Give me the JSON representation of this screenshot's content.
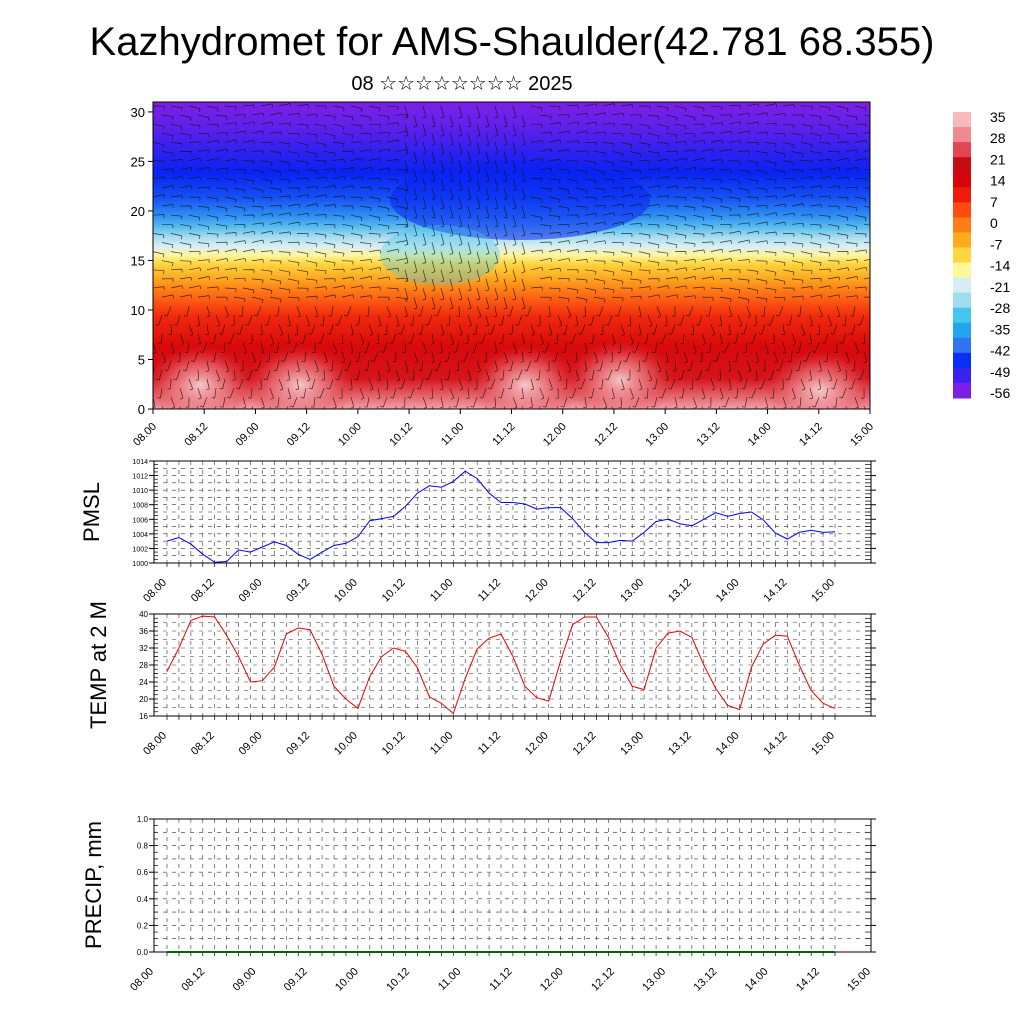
{
  "title": "Kazhydromet for AMS-Shaulder(42.781 68.355)",
  "subtitle": "08 ☆☆☆☆☆☆☆☆ 2025",
  "colors": {
    "pmsl_line": "#0000ee",
    "temp_line": "#ee0000",
    "precip_line": "#006400",
    "palette": [
      "#7b1fe8",
      "#3a22f0",
      "#0a2ef5",
      "#2f74f2",
      "#20a6f0",
      "#46c6ee",
      "#9fdcf0",
      "#d6eef3",
      "#fff899",
      "#ffd640",
      "#ffab1e",
      "#ff7d14",
      "#ff4a10",
      "#f01a0c",
      "#d5060a",
      "#c70b12",
      "#e34650",
      "#f08a92",
      "#f6b9bd"
    ]
  },
  "chart_data": [
    {
      "type": "heatmap",
      "description_name": "cross-section",
      "xlabel": "",
      "ylabel": "",
      "x_ticks": [
        "08.00",
        "08.12",
        "09.00",
        "09.12",
        "10.00",
        "10.12",
        "11.00",
        "11.12",
        "12.00",
        "12.12",
        "13.00",
        "13.12",
        "14.00",
        "14.12",
        "15.00"
      ],
      "y_ticks": [
        0,
        5,
        10,
        15,
        20,
        25,
        30
      ],
      "ylim": [
        0,
        31
      ],
      "colorbar_labels": [
        "35",
        "28",
        "21",
        "14",
        "7",
        "0",
        "-7",
        "-14",
        "-21",
        "-28",
        "-35",
        "-42",
        "-49",
        "-56"
      ]
    },
    {
      "type": "line",
      "ylabel": "PMSL",
      "x_ticks": [
        "08.00",
        "08.12",
        "09.00",
        "09.12",
        "10.00",
        "10.12",
        "11.00",
        "11.12",
        "12.00",
        "12.12",
        "13.00",
        "13.12",
        "14.00",
        "14.12",
        "15.00"
      ],
      "y_ticks": [
        1000,
        1002,
        1004,
        1006,
        1008,
        1010,
        1012,
        1014
      ],
      "ylim": [
        1000,
        1014
      ],
      "x_step_hours": 3,
      "values": [
        1003.0,
        1003.5,
        1002.6,
        1001.2,
        1000.1,
        1000.2,
        1001.8,
        1001.5,
        1002.2,
        1002.9,
        1002.4,
        1001.2,
        1000.5,
        1001.5,
        1002.4,
        1002.7,
        1003.6,
        1005.8,
        1006.1,
        1006.4,
        1007.8,
        1009.6,
        1010.6,
        1010.4,
        1011.2,
        1012.6,
        1011.6,
        1009.6,
        1008.3,
        1008.3,
        1008.1,
        1007.4,
        1007.6,
        1007.6,
        1006.1,
        1004.2,
        1002.8,
        1002.8,
        1003.1,
        1003.0,
        1004.2,
        1005.7,
        1006.0,
        1005.4,
        1005.1,
        1006.0,
        1006.9,
        1006.4,
        1006.8,
        1007.0,
        1005.9,
        1004.1,
        1003.3,
        1004.2,
        1004.5,
        1004.2,
        1004.3
      ]
    },
    {
      "type": "line",
      "ylabel": "TEMP at 2 M",
      "x_ticks": [
        "08.00",
        "08.12",
        "09.00",
        "09.12",
        "10.00",
        "10.12",
        "11.00",
        "11.12",
        "12.00",
        "12.12",
        "13.00",
        "13.12",
        "14.00",
        "14.12",
        "15.00"
      ],
      "y_ticks": [
        16,
        20,
        24,
        28,
        32,
        36,
        40
      ],
      "ylim": [
        16,
        40
      ],
      "x_step_hours": 3,
      "values": [
        26.5,
        32,
        38.5,
        39.5,
        39.3,
        35,
        30,
        24,
        24.3,
        27.5,
        35.3,
        36.7,
        36.3,
        30.5,
        23,
        20,
        17.8,
        25.3,
        30,
        32,
        31.2,
        27.3,
        20.5,
        19,
        16.6,
        24.8,
        31.8,
        34.3,
        35.3,
        30,
        23,
        20.3,
        19.5,
        29,
        37.5,
        39.3,
        39.3,
        34.5,
        28,
        23,
        22.2,
        32,
        35.5,
        36,
        34.5,
        28,
        22.5,
        18.5,
        17.5,
        27.5,
        33,
        35,
        34.8,
        28,
        22,
        19,
        17.8
      ]
    },
    {
      "type": "line",
      "ylabel": "PRECIP, mm",
      "x_ticks": [
        "08.00",
        "08.12",
        "09.00",
        "09.12",
        "10.00",
        "10.12",
        "11.00",
        "11.12",
        "12.00",
        "12.12",
        "13.00",
        "13.12",
        "14.00",
        "14.12",
        "15.00"
      ],
      "y_ticks": [
        "0.0",
        "0.2",
        "0.4",
        "0.6",
        "0.8",
        "1.0"
      ],
      "ylim": [
        0,
        1
      ],
      "x_step_hours": 3,
      "values": [
        0,
        0,
        0,
        0,
        0,
        0,
        0,
        0,
        0,
        0,
        0,
        0,
        0,
        0,
        0,
        0,
        0,
        0,
        0,
        0,
        0,
        0,
        0,
        0,
        0,
        0,
        0,
        0,
        0,
        0,
        0,
        0,
        0,
        0,
        0,
        0,
        0,
        0,
        0,
        0,
        0,
        0,
        0,
        0,
        0,
        0,
        0,
        0,
        0,
        0,
        0,
        0,
        0,
        0,
        0,
        0,
        0
      ]
    }
  ]
}
